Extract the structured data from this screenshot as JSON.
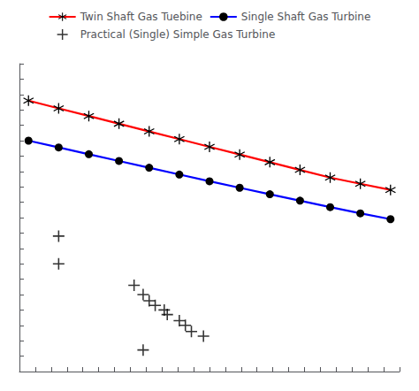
{
  "chart_data": {
    "type": "line",
    "series": [
      {
        "name": "Twin Shaft Gas Tuebine",
        "type": "line",
        "color": "#ff0000",
        "marker": "asterisk",
        "x": [
          0,
          1,
          2,
          3,
          4,
          5,
          6,
          7,
          8,
          9,
          10,
          11,
          12
        ],
        "values": [
          0.88,
          0.855,
          0.83,
          0.805,
          0.78,
          0.755,
          0.73,
          0.705,
          0.68,
          0.655,
          0.63,
          0.61,
          0.59
        ]
      },
      {
        "name": "Single Shaft Gas Turbine",
        "type": "line",
        "color": "#0000ff",
        "marker": "circle",
        "x": [
          0,
          1,
          2,
          3,
          4,
          5,
          6,
          7,
          8,
          9,
          10,
          11,
          12
        ],
        "values": [
          0.75,
          0.728,
          0.706,
          0.684,
          0.662,
          0.64,
          0.618,
          0.597,
          0.576,
          0.555,
          0.534,
          0.514,
          0.495
        ]
      },
      {
        "name": "Practical (Single) Simple Gas Turbine",
        "type": "scatter",
        "color": "#000000",
        "marker": "plus",
        "x": [
          1.0,
          1.0,
          3.5,
          3.8,
          4.0,
          4.2,
          4.5,
          4.6,
          5.0,
          5.2,
          5.4,
          5.8,
          3.8
        ],
        "values": [
          0.44,
          0.35,
          0.28,
          0.25,
          0.23,
          0.215,
          0.2,
          0.185,
          0.165,
          0.15,
          0.13,
          0.115,
          0.07
        ]
      }
    ],
    "xlim": [
      -0.3,
      12.3
    ],
    "xticks": [
      -0.3,
      0.225,
      0.75,
      1.275,
      1.8,
      2.325,
      2.85,
      3.375,
      3.9,
      4.425,
      4.95,
      5.475,
      6.0,
      6.525,
      7.05,
      7.575,
      8.1,
      8.625,
      9.15,
      9.675,
      10.2,
      10.725,
      11.25,
      11.775,
      12.3
    ],
    "ylim": [
      0.0,
      1.0
    ],
    "yticks": [
      0.0,
      0.05,
      0.1,
      0.15,
      0.2,
      0.25,
      0.3,
      0.35,
      0.4,
      0.45,
      0.5,
      0.55,
      0.6,
      0.65,
      0.7,
      0.75,
      0.8,
      0.85,
      0.9,
      0.95,
      1.0
    ],
    "tick_labels": false,
    "grid": false,
    "legend": "top"
  }
}
